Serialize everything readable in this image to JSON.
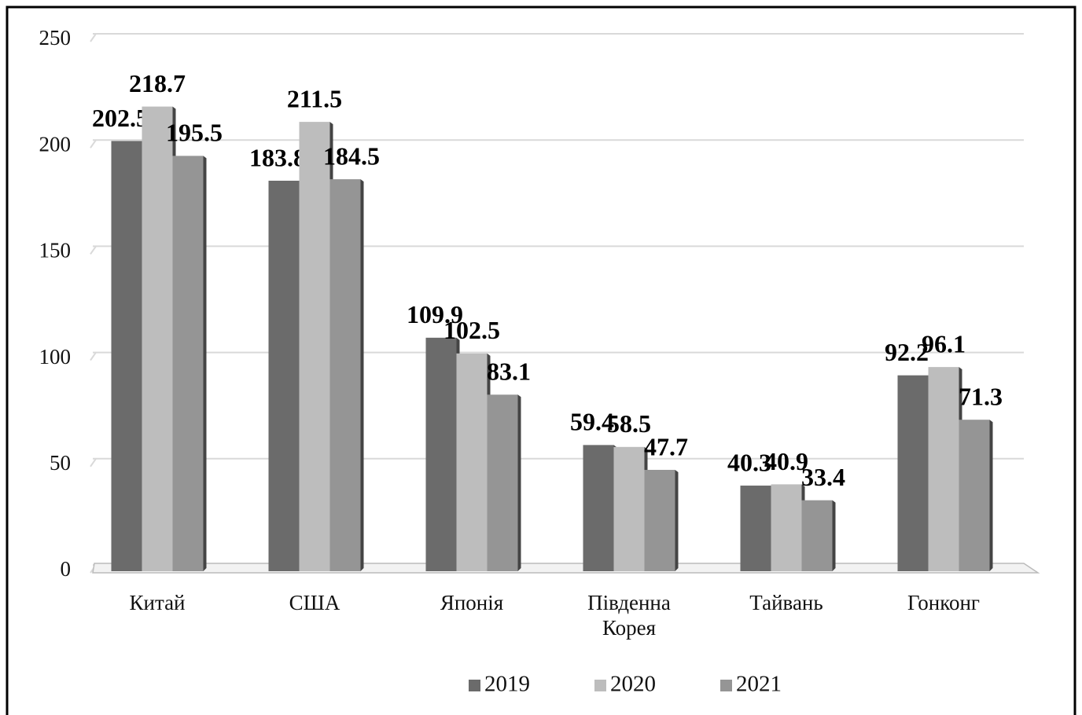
{
  "chart_data": {
    "type": "bar",
    "categories": [
      "Китай",
      "США",
      "Японія",
      "Південна Корея",
      "Тайвань",
      "Гонконг"
    ],
    "series": [
      {
        "name": "2019",
        "color": "#6b6b6b",
        "values": [
          202.5,
          183.8,
          109.9,
          59.4,
          40.3,
          92.2
        ]
      },
      {
        "name": "2020",
        "color": "#bdbdbd",
        "values": [
          218.7,
          211.5,
          102.5,
          58.5,
          40.9,
          96.1
        ]
      },
      {
        "name": "2021",
        "color": "#959595",
        "values": [
          195.5,
          184.5,
          83.1,
          47.7,
          33.4,
          71.3
        ]
      }
    ],
    "ylim": [
      0,
      250
    ],
    "yticks": [
      0,
      50,
      100,
      150,
      200,
      250
    ],
    "grid": true,
    "legend": "bottom"
  }
}
